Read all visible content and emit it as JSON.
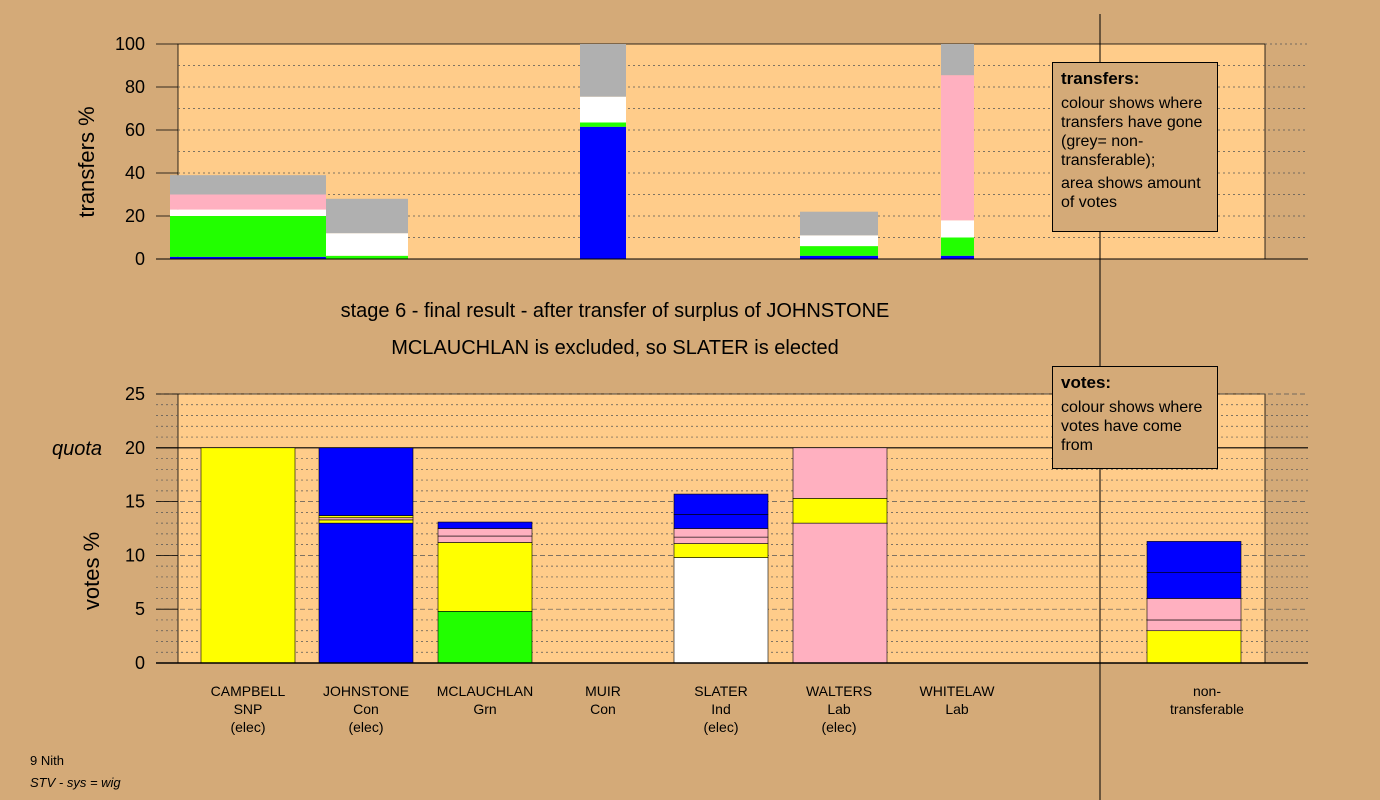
{
  "colors": {
    "background": "#d4aa78",
    "plot_area": "#ffcc8a",
    "snp": "#ffff00",
    "con": "#0000ff",
    "grn": "#22ff00",
    "ind": "#ffffff",
    "lab": "#ffb0c0",
    "non_transferable": "#b0b0b0"
  },
  "titles": {
    "line1": "stage 6 - final result - after transfer of surplus of JOHNSTONE",
    "line2": "MCLAUCHLAN is excluded, so SLATER is elected"
  },
  "legend_transfers": {
    "heading": "transfers:",
    "p1": "colour shows where transfers have gone (grey= non-transferable);",
    "p2": "area shows amount of votes"
  },
  "legend_votes": {
    "heading": "votes:",
    "p1": "colour shows where votes have come from"
  },
  "candidates": [
    {
      "name": "CAMPBELL",
      "party": "SNP",
      "status": "(elec)"
    },
    {
      "name": "JOHNSTONE",
      "party": "Con",
      "status": "(elec)"
    },
    {
      "name": "MCLAUCHLAN",
      "party": "Grn",
      "status": ""
    },
    {
      "name": "MUIR",
      "party": "Con",
      "status": ""
    },
    {
      "name": "SLATER",
      "party": "Ind",
      "status": "(elec)"
    },
    {
      "name": "WALTERS",
      "party": "Lab",
      "status": "(elec)"
    },
    {
      "name": "WHITELAW",
      "party": "Lab",
      "status": ""
    }
  ],
  "non_transferable_label": {
    "line1": "non-",
    "line2": "transferable"
  },
  "footer": {
    "line1": "9 Nith",
    "line2": "STV - sys = wig"
  },
  "chart_data": [
    {
      "type": "bar",
      "stacked": true,
      "ylabel": "transfers %",
      "ylim": [
        0,
        100
      ],
      "yticks": [
        0,
        20,
        40,
        60,
        80,
        100
      ],
      "bars": [
        {
          "segments": [
            {
              "color": "#0000ff",
              "value": 1
            },
            {
              "color": "#22ff00",
              "value": 19
            },
            {
              "color": "#ffffff",
              "value": 3
            },
            {
              "color": "#ffb0c0",
              "value": 7
            },
            {
              "color": "#b0b0b0",
              "value": 9
            }
          ]
        },
        {
          "segments": [
            {
              "color": "#22ff00",
              "value": 1.5
            },
            {
              "color": "#ffffff",
              "value": 10.5
            },
            {
              "color": "#b0b0b0",
              "value": 16
            }
          ]
        },
        {
          "segments": [
            {
              "color": "#0000ff",
              "value": 61.5
            },
            {
              "color": "#22ff00",
              "value": 2
            },
            {
              "color": "#ffffff",
              "value": 12
            },
            {
              "color": "#b0b0b0",
              "value": 24.5
            }
          ]
        },
        {
          "segments": [
            {
              "color": "#0000ff",
              "value": 1.5
            },
            {
              "color": "#22ff00",
              "value": 4.5
            },
            {
              "color": "#ffffff",
              "value": 5
            },
            {
              "color": "#b0b0b0",
              "value": 11
            }
          ]
        },
        {
          "segments": [
            {
              "color": "#0000ff",
              "value": 1.5
            },
            {
              "color": "#22ff00",
              "value": 8.5
            },
            {
              "color": "#ffffff",
              "value": 8
            },
            {
              "color": "#ffb0c0",
              "value": 67.5
            },
            {
              "color": "#b0b0b0",
              "value": 14.5
            }
          ]
        }
      ]
    },
    {
      "type": "bar",
      "stacked": true,
      "ylabel": "votes %",
      "quota_label": "quota",
      "quota": 20,
      "ylim": [
        0,
        25
      ],
      "yticks": [
        0,
        5,
        10,
        15,
        20,
        25
      ],
      "candidates": [
        "CAMPBELL",
        "JOHNSTONE",
        "MCLAUCHLAN",
        "MUIR",
        "SLATER",
        "WALTERS",
        "WHITELAW",
        "non-transferable"
      ],
      "bars": [
        {
          "segments": [
            {
              "color": "#ffff00",
              "value": 20
            }
          ]
        },
        {
          "segments": [
            {
              "color": "#0000ff",
              "value": 13
            },
            {
              "color": "#ffff00",
              "value": 0.3
            },
            {
              "color": "#ffb0c0",
              "value": 0.2
            },
            {
              "color": "#ffff00",
              "value": 0.2
            },
            {
              "color": "#0000ff",
              "value": 6.3
            }
          ]
        },
        {
          "segments": [
            {
              "color": "#22ff00",
              "value": 4.8
            },
            {
              "color": "#ffff00",
              "value": 6.4
            },
            {
              "color": "#ffb0c0",
              "value": 0.6
            },
            {
              "color": "#ffb0c0",
              "value": 0.7
            },
            {
              "color": "#0000ff",
              "value": 0.6
            }
          ]
        },
        {
          "segments": []
        },
        {
          "segments": [
            {
              "color": "#ffffff",
              "value": 9.8
            },
            {
              "color": "#ffff00",
              "value": 1.3
            },
            {
              "color": "#ffb0c0",
              "value": 0.6
            },
            {
              "color": "#ffb0c0",
              "value": 0.8
            },
            {
              "color": "#0000ff",
              "value": 1.3
            },
            {
              "color": "#0000ff",
              "value": 1.9
            }
          ]
        },
        {
          "segments": [
            {
              "color": "#ffb0c0",
              "value": 13
            },
            {
              "color": "#ffff00",
              "value": 2.3
            },
            {
              "color": "#ffb0c0",
              "value": 4.7
            }
          ]
        },
        {
          "segments": []
        },
        {
          "segments": [
            {
              "color": "#ffff00",
              "value": 3
            },
            {
              "color": "#ffb0c0",
              "value": 1
            },
            {
              "color": "#ffb0c0",
              "value": 2
            },
            {
              "color": "#0000ff",
              "value": 2.4
            },
            {
              "color": "#0000ff",
              "value": 2.9
            }
          ]
        }
      ]
    }
  ]
}
